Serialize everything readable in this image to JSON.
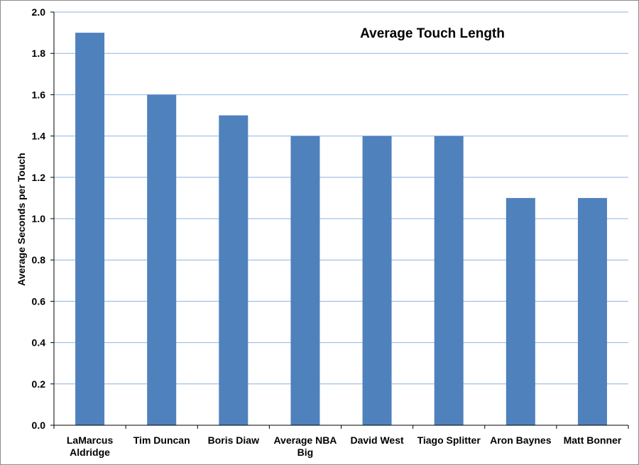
{
  "chart_data": {
    "type": "bar",
    "title": "Average Touch Length",
    "xlabel": "",
    "ylabel": "Average Seconds per Touch",
    "categories": [
      "LaMarcus Aldridge",
      "Tim Duncan",
      "Boris Diaw",
      "Average NBA Big",
      "David West",
      "Tiago Splitter",
      "Aron Baynes",
      "Matt Bonner"
    ],
    "category_lines": [
      [
        "LaMarcus",
        "Aldridge"
      ],
      [
        "Tim Duncan"
      ],
      [
        "Boris Diaw"
      ],
      [
        "Average NBA",
        "Big"
      ],
      [
        "David West"
      ],
      [
        "Tiago Splitter"
      ],
      [
        "Aron Baynes"
      ],
      [
        "Matt Bonner"
      ]
    ],
    "values": [
      1.9,
      1.6,
      1.5,
      1.4,
      1.4,
      1.4,
      1.1,
      1.1
    ],
    "ylim": [
      0,
      2.0
    ],
    "yticks": [
      "0.0",
      "0.2",
      "0.4",
      "0.6",
      "0.8",
      "1.0",
      "1.2",
      "1.4",
      "1.6",
      "1.8",
      "2.0"
    ],
    "grid": true,
    "legend": "none",
    "bar_color": "#4f81bd",
    "grid_color": "#8eb4e3"
  }
}
